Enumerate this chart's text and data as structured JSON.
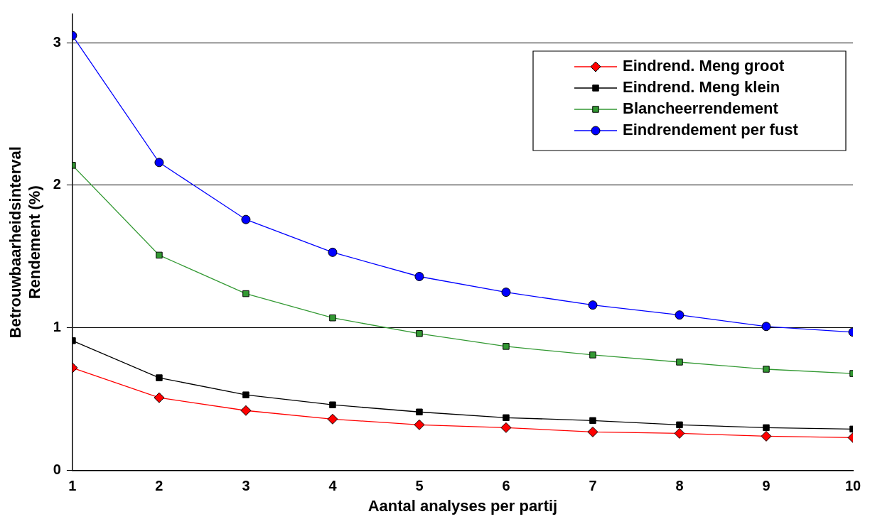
{
  "chart_data": {
    "type": "line",
    "xlabel": "Aantal analyses per partij",
    "ylabel": "Betrouwbaarheidsinterval\nRendement (%)",
    "x": [
      1,
      2,
      3,
      4,
      5,
      6,
      7,
      8,
      9,
      10
    ],
    "xlim": [
      1,
      10
    ],
    "xticks": [
      1,
      2,
      3,
      4,
      5,
      6,
      7,
      8,
      9,
      10
    ],
    "ylim": [
      0,
      3.2
    ],
    "yticks": [
      0,
      1,
      2,
      3
    ],
    "grid": "y",
    "legend": "top right",
    "series": [
      {
        "name": "Eindrend. Meng groot",
        "color": "#ff0000",
        "marker": "diamond",
        "values": [
          0.72,
          0.51,
          0.42,
          0.36,
          0.32,
          0.3,
          0.27,
          0.26,
          0.24,
          0.23
        ]
      },
      {
        "name": "Eindrend. Meng klein",
        "color": "#000000",
        "marker": "square",
        "values": [
          0.91,
          0.65,
          0.53,
          0.46,
          0.41,
          0.37,
          0.35,
          0.32,
          0.3,
          0.29
        ]
      },
      {
        "name": "Blancheerrendement",
        "color": "#339933",
        "marker": "square",
        "values": [
          2.14,
          1.51,
          1.24,
          1.07,
          0.96,
          0.87,
          0.81,
          0.76,
          0.71,
          0.68
        ]
      },
      {
        "name": "Eindrendement per fust",
        "color": "#0000ff",
        "marker": "circle",
        "values": [
          3.05,
          2.16,
          1.76,
          1.53,
          1.36,
          1.25,
          1.16,
          1.09,
          1.01,
          0.97
        ]
      }
    ]
  }
}
